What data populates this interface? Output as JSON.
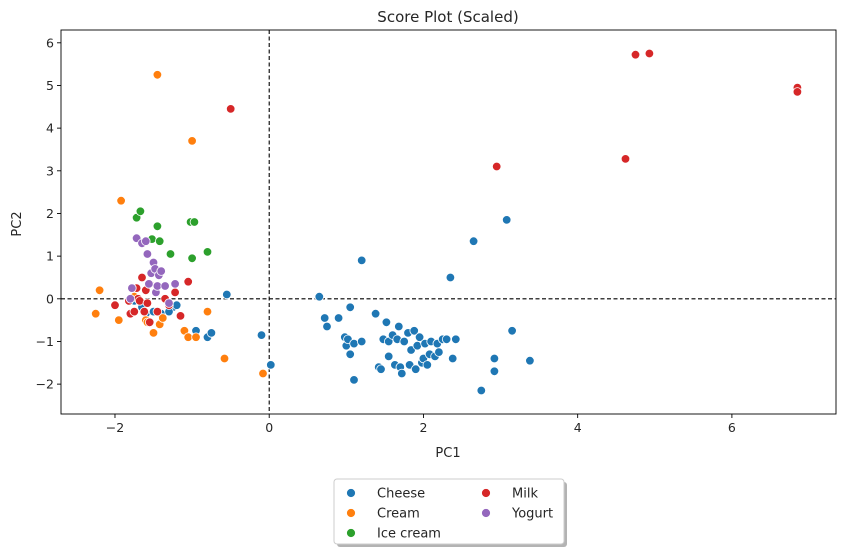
{
  "chart_data": {
    "type": "scatter",
    "title": "Score Plot (Scaled)",
    "xlabel": "PC1",
    "ylabel": "PC2",
    "xlim": [
      -2.7,
      7.35
    ],
    "ylim": [
      -2.7,
      6.3
    ],
    "xticks": [
      -2,
      0,
      2,
      4,
      6
    ],
    "yticks": [
      -2,
      -1,
      0,
      1,
      2,
      3,
      4,
      5,
      6
    ],
    "xtick_labels": [
      "−2",
      "0",
      "2",
      "4",
      "6"
    ],
    "ytick_labels": [
      "−2",
      "−1",
      "0",
      "1",
      "2",
      "3",
      "4",
      "5",
      "6"
    ],
    "reference_lines": {
      "x": 0,
      "y": 0,
      "style": "dashed"
    },
    "legend_position": "bottom-center",
    "series": [
      {
        "name": "Cheese",
        "color": "#1f77b4",
        "points": [
          [
            -1.75,
            -0.05
          ],
          [
            -1.65,
            -0.2
          ],
          [
            -1.6,
            -0.35
          ],
          [
            -1.5,
            -0.3
          ],
          [
            -1.4,
            -0.35
          ],
          [
            -1.3,
            -0.1
          ],
          [
            -1.25,
            -0.2
          ],
          [
            -1.2,
            -0.15
          ],
          [
            -1.3,
            -0.3
          ],
          [
            -0.95,
            -0.75
          ],
          [
            -0.8,
            -0.9
          ],
          [
            -0.75,
            -0.8
          ],
          [
            -0.55,
            0.1
          ],
          [
            -0.1,
            -0.85
          ],
          [
            0.02,
            -1.55
          ],
          [
            0.65,
            0.05
          ],
          [
            0.72,
            -0.45
          ],
          [
            0.75,
            -0.65
          ],
          [
            0.9,
            -0.45
          ],
          [
            0.98,
            -0.9
          ],
          [
            1.0,
            -1.1
          ],
          [
            1.02,
            -0.95
          ],
          [
            1.05,
            -0.2
          ],
          [
            1.05,
            -1.3
          ],
          [
            1.1,
            -1.05
          ],
          [
            1.1,
            -1.9
          ],
          [
            1.2,
            0.9
          ],
          [
            1.2,
            -1.0
          ],
          [
            1.38,
            -0.35
          ],
          [
            1.42,
            -1.6
          ],
          [
            1.45,
            -1.65
          ],
          [
            1.48,
            -0.95
          ],
          [
            1.52,
            -0.55
          ],
          [
            1.55,
            -1.0
          ],
          [
            1.55,
            -1.35
          ],
          [
            1.6,
            -0.85
          ],
          [
            1.63,
            -1.55
          ],
          [
            1.66,
            -0.95
          ],
          [
            1.68,
            -0.65
          ],
          [
            1.7,
            -1.6
          ],
          [
            1.72,
            -1.75
          ],
          [
            1.75,
            -1.0
          ],
          [
            1.8,
            -0.8
          ],
          [
            1.82,
            -1.55
          ],
          [
            1.84,
            -1.2
          ],
          [
            1.88,
            -0.75
          ],
          [
            1.9,
            -1.65
          ],
          [
            1.92,
            -1.1
          ],
          [
            1.95,
            -0.9
          ],
          [
            1.98,
            -1.5
          ],
          [
            2.0,
            -1.4
          ],
          [
            2.02,
            -1.05
          ],
          [
            2.05,
            -1.55
          ],
          [
            2.08,
            -1.3
          ],
          [
            2.1,
            -1.0
          ],
          [
            2.15,
            -1.35
          ],
          [
            2.18,
            -1.05
          ],
          [
            2.2,
            -1.25
          ],
          [
            2.25,
            -0.95
          ],
          [
            2.3,
            -0.95
          ],
          [
            2.35,
            0.5
          ],
          [
            2.38,
            -1.4
          ],
          [
            2.42,
            -0.95
          ],
          [
            2.65,
            1.35
          ],
          [
            2.75,
            -2.15
          ],
          [
            2.92,
            -1.4
          ],
          [
            2.92,
            -1.7
          ],
          [
            3.08,
            1.85
          ],
          [
            3.15,
            -0.75
          ],
          [
            3.38,
            -1.45
          ]
        ]
      },
      {
        "name": "Cream",
        "color": "#ff7f0e",
        "points": [
          [
            -2.25,
            -0.35
          ],
          [
            -2.2,
            0.2
          ],
          [
            -1.95,
            -0.5
          ],
          [
            -1.92,
            2.3
          ],
          [
            -1.75,
            0.05
          ],
          [
            -1.6,
            -0.5
          ],
          [
            -1.58,
            -0.55
          ],
          [
            -1.5,
            -0.8
          ],
          [
            -1.45,
            5.25
          ],
          [
            -1.42,
            -0.6
          ],
          [
            -1.38,
            -0.45
          ],
          [
            -1.1,
            -0.75
          ],
          [
            -1.05,
            -0.9
          ],
          [
            -1.0,
            3.7
          ],
          [
            -0.95,
            -0.9
          ],
          [
            -0.8,
            -0.3
          ],
          [
            -0.58,
            -1.4
          ],
          [
            -0.08,
            -1.75
          ]
        ]
      },
      {
        "name": "Ice cream",
        "color": "#2ca02c",
        "points": [
          [
            -1.72,
            1.9
          ],
          [
            -1.67,
            2.05
          ],
          [
            -1.52,
            1.4
          ],
          [
            -1.45,
            1.7
          ],
          [
            -1.42,
            1.35
          ],
          [
            -1.28,
            1.05
          ],
          [
            -1.02,
            1.8
          ],
          [
            -1.0,
            0.95
          ],
          [
            -0.97,
            1.8
          ],
          [
            -0.8,
            1.1
          ]
        ]
      },
      {
        "name": "Milk",
        "color": "#d62728",
        "points": [
          [
            -2.0,
            -0.15
          ],
          [
            -1.82,
            -0.05
          ],
          [
            -1.8,
            -0.35
          ],
          [
            -1.75,
            -0.3
          ],
          [
            -1.72,
            0.25
          ],
          [
            -1.7,
            0.0
          ],
          [
            -1.68,
            -0.05
          ],
          [
            -1.65,
            0.5
          ],
          [
            -1.62,
            -0.3
          ],
          [
            -1.6,
            0.2
          ],
          [
            -1.58,
            -0.1
          ],
          [
            -1.55,
            0.35
          ],
          [
            -1.55,
            -0.55
          ],
          [
            -1.45,
            -0.3
          ],
          [
            -1.35,
            0.0
          ],
          [
            -1.3,
            -0.15
          ],
          [
            -1.22,
            0.15
          ],
          [
            -1.15,
            -0.4
          ],
          [
            -1.05,
            0.4
          ],
          [
            -0.5,
            4.45
          ],
          [
            2.95,
            3.1
          ],
          [
            4.62,
            3.28
          ],
          [
            4.75,
            5.72
          ],
          [
            4.93,
            5.75
          ],
          [
            6.85,
            4.95
          ],
          [
            6.85,
            4.85
          ]
        ]
      },
      {
        "name": "Yogurt",
        "color": "#9467bd",
        "points": [
          [
            -1.8,
            0.0
          ],
          [
            -1.78,
            0.25
          ],
          [
            -1.72,
            1.42
          ],
          [
            -1.65,
            1.3
          ],
          [
            -1.6,
            1.35
          ],
          [
            -1.58,
            1.05
          ],
          [
            -1.56,
            0.35
          ],
          [
            -1.53,
            0.6
          ],
          [
            -1.5,
            0.85
          ],
          [
            -1.48,
            0.7
          ],
          [
            -1.47,
            0.15
          ],
          [
            -1.45,
            0.3
          ],
          [
            -1.43,
            0.55
          ],
          [
            -1.4,
            0.65
          ],
          [
            -1.35,
            0.3
          ],
          [
            -1.3,
            -0.1
          ],
          [
            -1.22,
            0.35
          ]
        ]
      }
    ]
  }
}
